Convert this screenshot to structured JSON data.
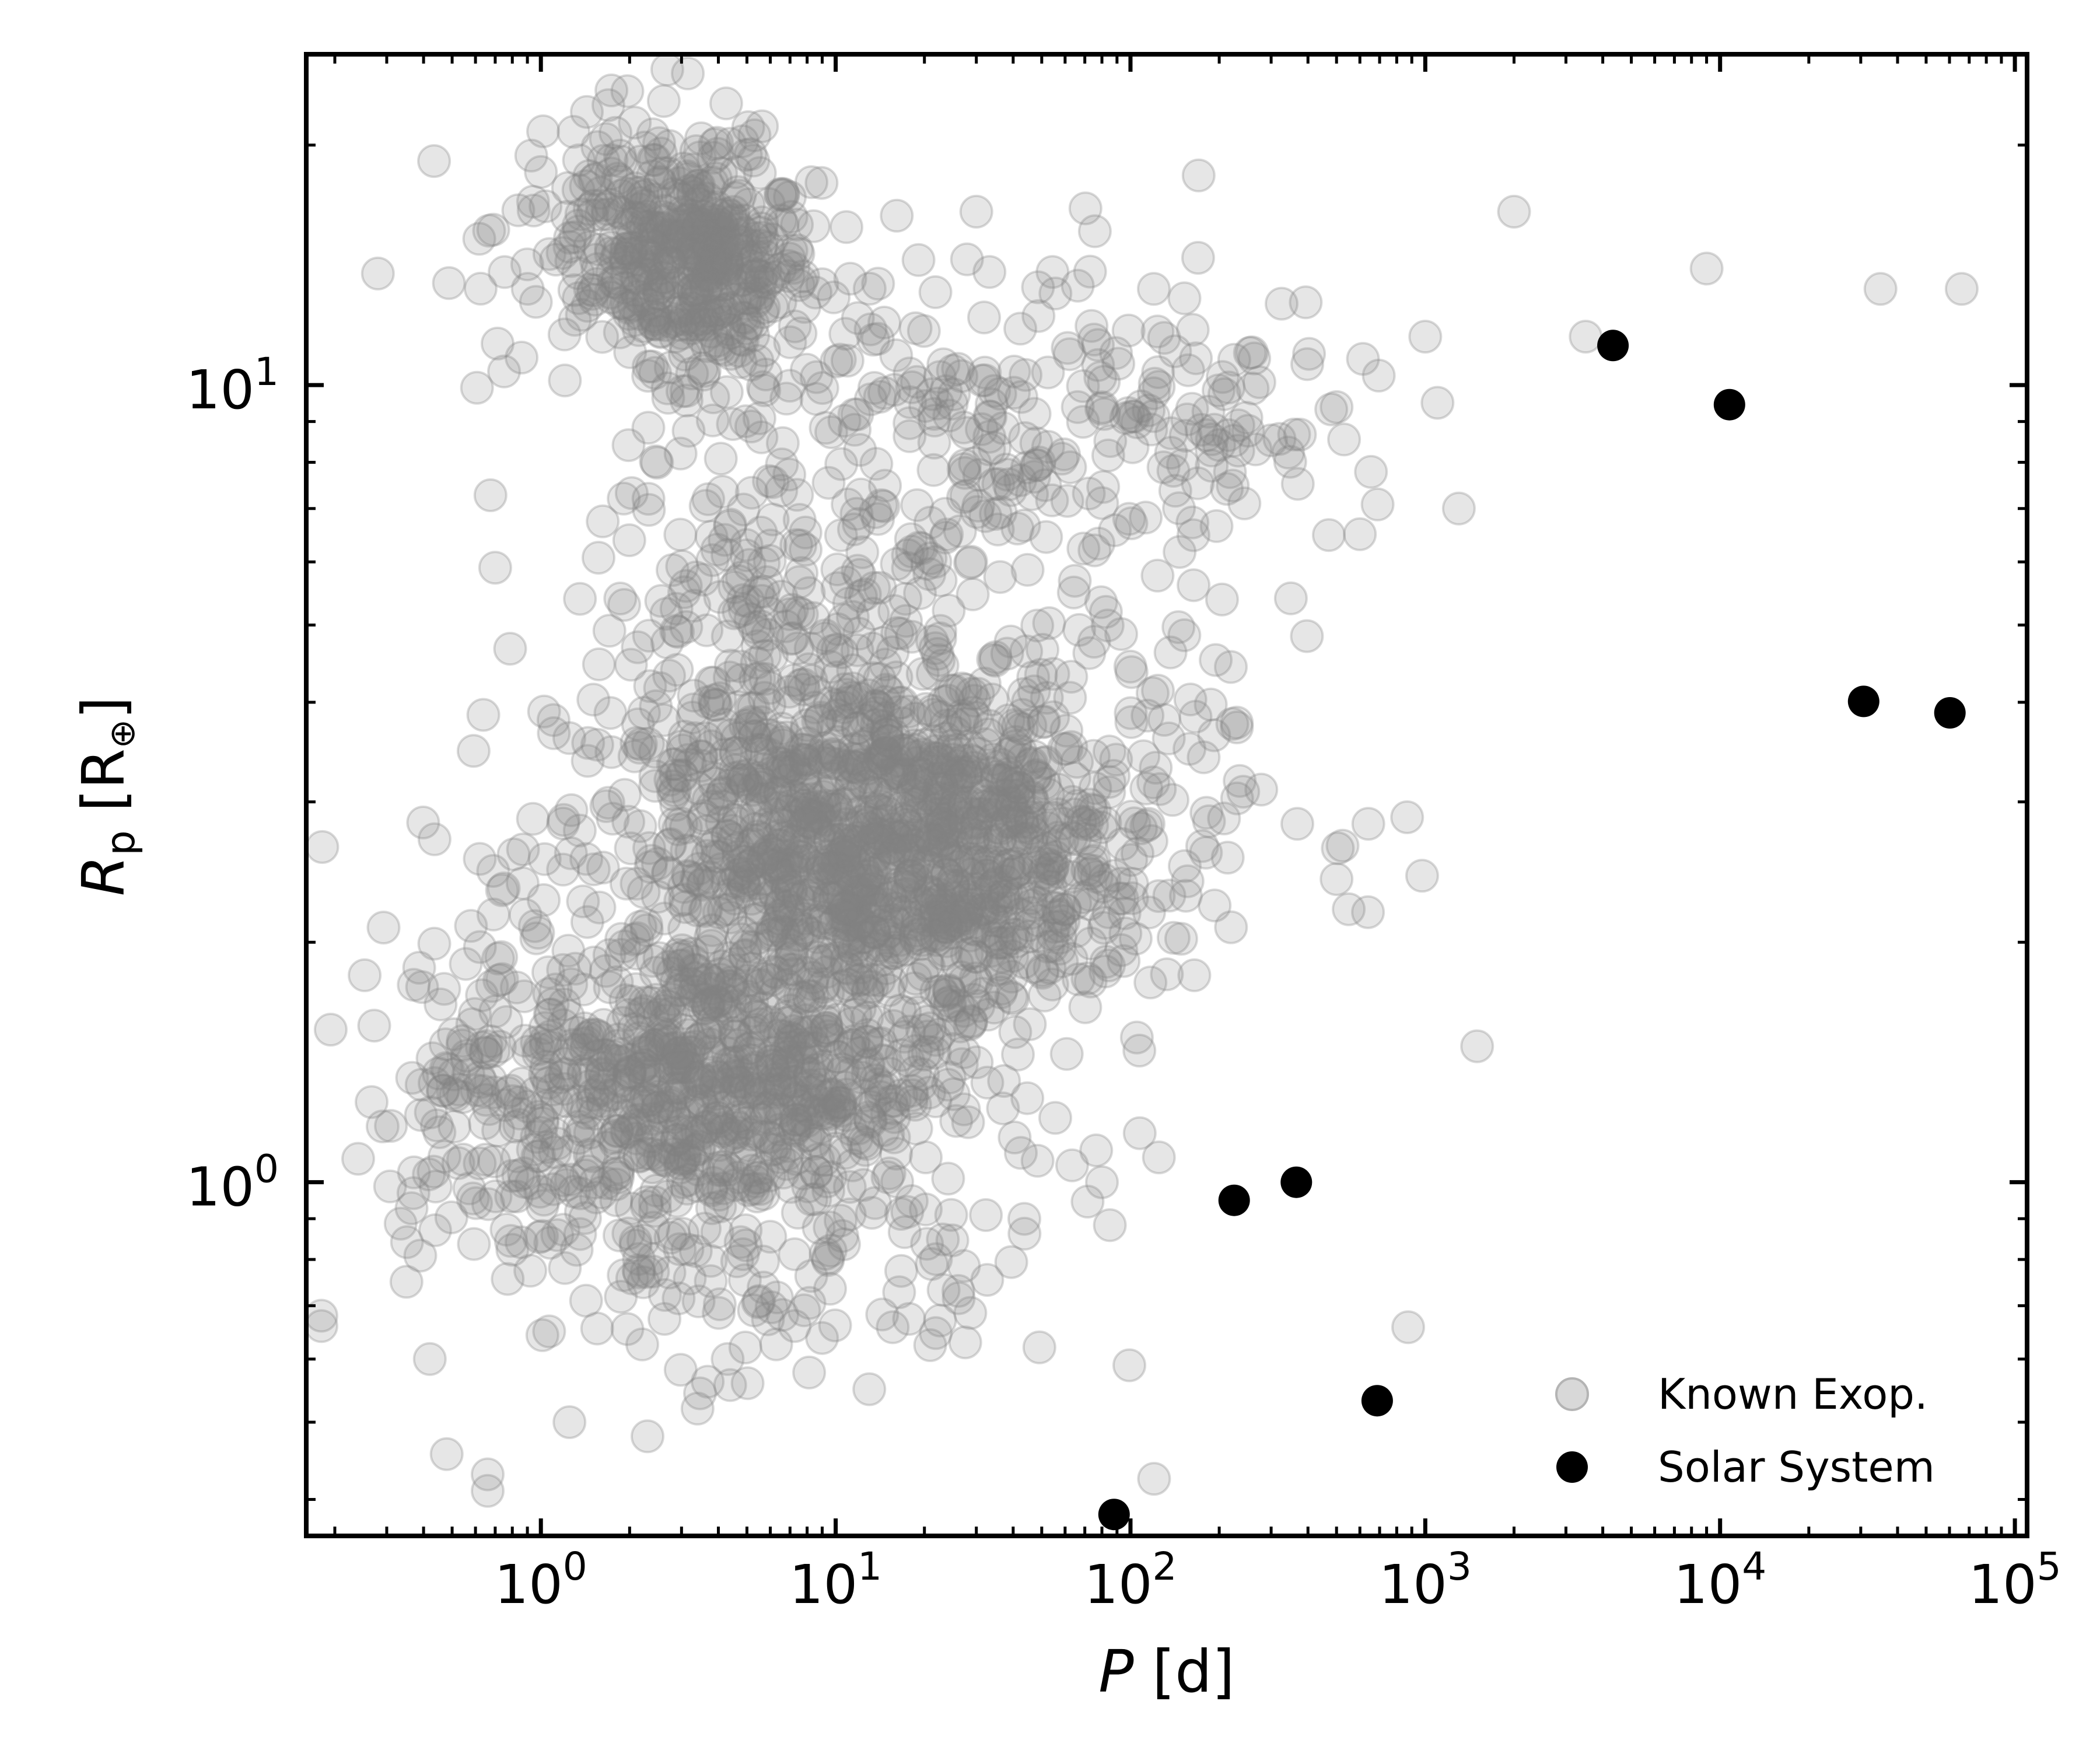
{
  "chart_data": {
    "type": "scatter",
    "xlabel": "P [d]",
    "ylabel": "Rp [R⊕]",
    "xscale": "log",
    "yscale": "log",
    "xlim": [
      0.16,
      110000
    ],
    "ylim": [
      0.36,
      26
    ],
    "x_ticks": [
      {
        "value": 1,
        "base": "10",
        "exp": "0"
      },
      {
        "value": 10,
        "base": "10",
        "exp": "1"
      },
      {
        "value": 100,
        "base": "10",
        "exp": "2"
      },
      {
        "value": 1000,
        "base": "10",
        "exp": "3"
      },
      {
        "value": 10000,
        "base": "10",
        "exp": "4"
      },
      {
        "value": 100000,
        "base": "10",
        "exp": "5"
      }
    ],
    "y_ticks": [
      {
        "value": 1,
        "base": "10",
        "exp": "0"
      },
      {
        "value": 10,
        "base": "10",
        "exp": "1"
      }
    ],
    "legend_position": "lower-right",
    "legend": [
      {
        "label": "Known Exop.",
        "color": "#c8c8c8"
      },
      {
        "label": "Solar System",
        "color": "#000000"
      }
    ],
    "colors": {
      "known": "#808080",
      "solar": "#000000"
    },
    "series": [
      {
        "name": "Solar System",
        "x": [
          87.97,
          224.7,
          365.25,
          686.98,
          4332.6,
          10759,
          30687,
          60190
        ],
        "y": [
          0.383,
          0.949,
          1.0,
          0.532,
          11.21,
          9.45,
          4.01,
          3.88
        ]
      },
      {
        "name": "Known Exop.",
        "clusters": [
          {
            "log_x": 0.55,
            "log_y": 1.15,
            "sd_x": 0.18,
            "sd_y": 0.06,
            "n": 320
          },
          {
            "log_x": 0.35,
            "log_y": 1.2,
            "sd_x": 0.25,
            "sd_y": 0.08,
            "n": 180
          },
          {
            "log_x": 0.95,
            "log_y": 0.4,
            "sd_x": 0.45,
            "sd_y": 0.13,
            "n": 900
          },
          {
            "log_x": 0.65,
            "log_y": 0.13,
            "sd_x": 0.35,
            "sd_y": 0.09,
            "n": 560
          },
          {
            "log_x": 1.35,
            "log_y": 0.42,
            "sd_x": 0.3,
            "sd_y": 0.1,
            "n": 450
          },
          {
            "log_x": 0.0,
            "log_y": 0.12,
            "sd_x": 0.3,
            "sd_y": 0.1,
            "n": 210
          },
          {
            "log_x": 1.4,
            "log_y": 0.95,
            "sd_x": 0.55,
            "sd_y": 0.1,
            "n": 230
          },
          {
            "log_x": 0.9,
            "log_y": 0.7,
            "sd_x": 0.4,
            "sd_y": 0.1,
            "n": 180
          },
          {
            "log_x": 1.9,
            "log_y": 0.55,
            "sd_x": 0.4,
            "sd_y": 0.22,
            "n": 150
          },
          {
            "log_x": 0.8,
            "log_y": -0.1,
            "sd_x": 0.5,
            "sd_y": 0.09,
            "n": 150
          },
          {
            "log_x": 2.2,
            "log_y": 0.95,
            "sd_x": 0.3,
            "sd_y": 0.12,
            "n": 60
          }
        ],
        "outliers": {
          "x": [
            0.24,
            0.18,
            0.18,
            0.42,
            0.66,
            0.66,
            1.25,
            2.3,
            3.4,
            4.3,
            13.0,
            30,
            120,
            350,
            600,
            1300,
            1000,
            1100,
            2000,
            3500,
            9000,
            35000,
            66000,
            0.35,
            0.28,
            0.75,
            0.7,
            80,
            500,
            550
          ],
          "y": [
            1.07,
            0.68,
            0.66,
            0.6,
            0.41,
            0.43,
            0.5,
            0.48,
            0.52,
            0.6,
            0.55,
            16.5,
            13.2,
            5.4,
            6.5,
            7.0,
            11.5,
            9.5,
            16.5,
            11.5,
            14.0,
            13.2,
            13.2,
            0.75,
            13.8,
            10.4,
            5.9,
            1.0,
            2.4,
            2.2
          ]
        }
      }
    ]
  }
}
